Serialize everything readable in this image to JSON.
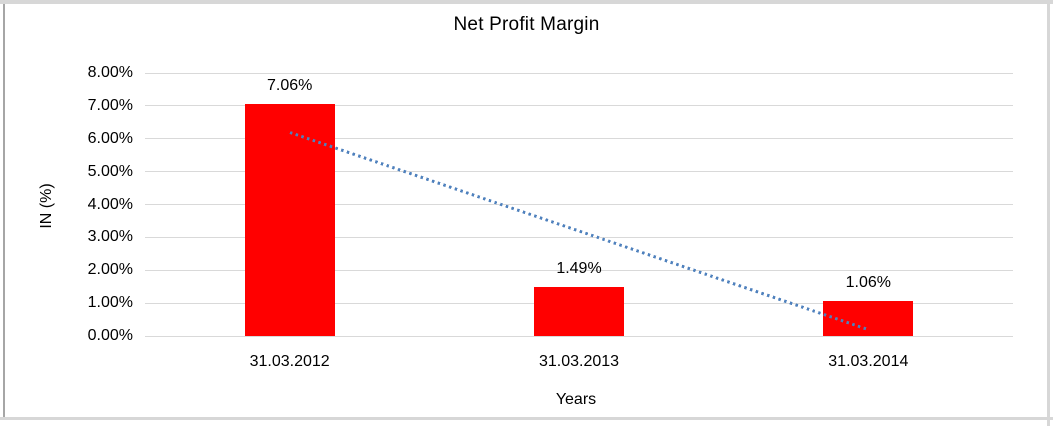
{
  "chart_data": {
    "type": "bar",
    "title": "Net Profit Margin",
    "xlabel": "Years",
    "ylabel": "IN (%)",
    "categories": [
      "31.03.2012",
      "31.03.2013",
      "31.03.2014"
    ],
    "values": [
      7.06,
      1.49,
      1.06
    ],
    "data_labels": [
      "7.06%",
      "1.49%",
      "1.06%"
    ],
    "ylim": [
      0,
      8
    ],
    "ytick_labels_top_to_bottom": [
      "8.00%",
      "7.00%",
      "6.00%",
      "5.00%",
      "4.00%",
      "3.00%",
      "2.00%",
      "1.00%",
      "0.00%"
    ],
    "grid": true,
    "legend": "none",
    "bar_color": "#ff0000",
    "gridline_color": "#d9d9d9",
    "trendline": {
      "type": "linear",
      "style": "dotted",
      "color": "#4f81bd",
      "points": [
        {
          "category_index": 0,
          "value": 6.2
        },
        {
          "category_index": 2,
          "value": 0.2
        }
      ]
    }
  },
  "frame": {
    "band_color": "#d7d7d7",
    "left_edge_color": "#a6a6a6"
  }
}
